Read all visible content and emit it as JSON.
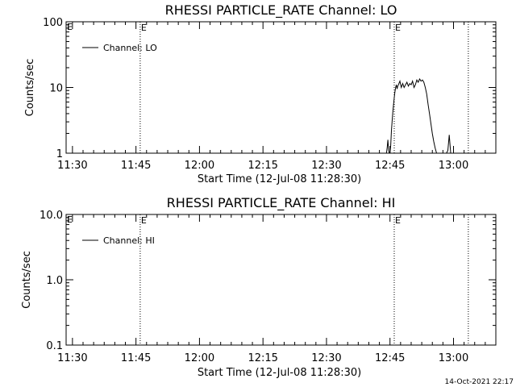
{
  "chart_data": [
    {
      "type": "line",
      "title": "RHESSI PARTICLE_RATE Channel: LO",
      "xlabel": "Start Time (12-Jul-08 11:28:30)",
      "ylabel": "Counts/sec",
      "yscale": "log",
      "ylim": [
        1,
        100
      ],
      "yticks": [
        "1",
        "10",
        "100"
      ],
      "xlim": [
        "11:28:30",
        "13:10:00"
      ],
      "xticks": [
        "11:30",
        "11:45",
        "12:00",
        "12:15",
        "12:30",
        "12:45",
        "13:00"
      ],
      "legend": {
        "entries": [
          "Channel: LO"
        ],
        "placement": "top-left"
      },
      "markers": [
        {
          "time": "11:46:00",
          "label": "E"
        },
        {
          "time": "12:46:00",
          "label": "E"
        },
        {
          "time": "13:03:30",
          "label": ""
        }
      ],
      "series": [
        {
          "name": "Channel: LO",
          "x": [
            "12:44:10",
            "12:44:20",
            "12:44:30",
            "12:44:40",
            "12:44:50",
            "12:45:00",
            "12:45:10",
            "12:45:20",
            "12:45:30",
            "12:45:40",
            "12:45:50",
            "12:46:00",
            "12:46:10",
            "12:46:20",
            "12:46:30",
            "12:46:40",
            "12:46:50",
            "12:47:00",
            "12:47:20",
            "12:47:40",
            "12:48:00",
            "12:48:20",
            "12:48:40",
            "12:49:00",
            "12:49:20",
            "12:49:40",
            "12:50:00",
            "12:50:20",
            "12:50:40",
            "12:51:00",
            "12:51:20",
            "12:51:40",
            "12:52:00",
            "12:52:20",
            "12:52:40",
            "12:53:00",
            "12:53:20",
            "12:53:40",
            "12:54:00",
            "12:54:20",
            "12:54:40",
            "12:55:00",
            "12:55:20",
            "12:55:40",
            "12:56:00",
            "12:56:20",
            "12:56:40",
            "12:57:00",
            "12:57:20",
            "12:57:40",
            "12:58:00",
            "12:58:20",
            "12:58:40",
            "12:59:00",
            "12:59:20",
            "12:59:40",
            "13:00:00",
            "13:00:20",
            "13:00:40",
            "13:01:00",
            "13:01:20",
            "13:01:40",
            "13:02:00"
          ],
          "y": [
            1,
            1.2,
            1.6,
            1.1,
            1,
            1,
            1.3,
            2.2,
            3.0,
            4.2,
            5.5,
            7.0,
            8.5,
            10,
            11,
            9.5,
            10.5,
            11,
            12.5,
            10,
            11.5,
            10,
            11,
            12,
            10.5,
            11.5,
            11,
            12.5,
            10,
            11,
            13,
            12,
            13.5,
            12.5,
            13,
            12,
            10,
            8,
            5.5,
            4,
            2.8,
            2.0,
            1.5,
            1.2,
            1.0,
            1.0,
            1.0,
            1.0,
            1.0,
            1.0,
            1.0,
            1.0,
            1.1,
            1.9,
            1.0,
            1.0,
            1.0,
            1.0,
            1.0,
            1.0,
            1.0,
            1.0,
            1.0
          ]
        }
      ]
    },
    {
      "type": "line",
      "title": "RHESSI PARTICLE_RATE Channel: HI",
      "xlabel": "Start Time (12-Jul-08 11:28:30)",
      "ylabel": "Counts/sec",
      "yscale": "log",
      "ylim": [
        0.1,
        10
      ],
      "yticks": [
        "0.1",
        "1.0",
        "10.0"
      ],
      "xlim": [
        "11:28:30",
        "13:10:00"
      ],
      "xticks": [
        "11:30",
        "11:45",
        "12:00",
        "12:15",
        "12:30",
        "12:45",
        "13:00"
      ],
      "legend": {
        "entries": [
          "Channel: HI"
        ],
        "placement": "top-left"
      },
      "markers": [
        {
          "time": "11:46:00",
          "label": "E"
        },
        {
          "time": "12:46:00",
          "label": "E"
        },
        {
          "time": "13:03:30",
          "label": ""
        }
      ],
      "series": [
        {
          "name": "Channel: HI",
          "x": [],
          "y": []
        }
      ]
    }
  ],
  "footer": {
    "timestamp": "14-Oct-2021 22:17"
  }
}
